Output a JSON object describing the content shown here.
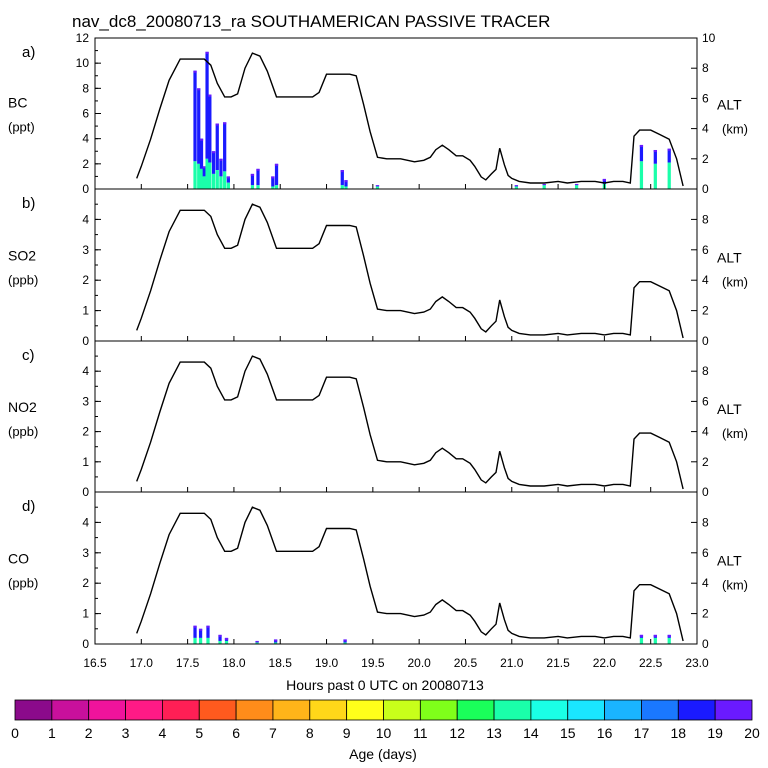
{
  "title": "nav_dc8_20080713_ra SOUTHAMERICAN PASSIVE TRACER",
  "xlabel": "Hours past 0 UTC on 20080713",
  "x_ticks": [
    "16.5",
    "17.0",
    "17.5",
    "18.0",
    "18.5",
    "19.0",
    "19.5",
    "20.0",
    "20.5",
    "21.0",
    "21.5",
    "22.0",
    "22.5",
    "23.0"
  ],
  "colorbar": {
    "label": "Age (days)",
    "ticks": [
      "0",
      "1",
      "2",
      "3",
      "4",
      "5",
      "6",
      "7",
      "8",
      "9",
      "10",
      "11",
      "12",
      "13",
      "14",
      "15",
      "16",
      "17",
      "18",
      "19",
      "20"
    ],
    "colors": [
      "#8b0a8b",
      "#c8109c",
      "#f0139c",
      "#ff1a86",
      "#ff1f55",
      "#ff5a1e",
      "#ff8c1a",
      "#ffb419",
      "#ffd719",
      "#ffff1a",
      "#c8ff1a",
      "#7fff1a",
      "#1aff5a",
      "#1affaa",
      "#1affe6",
      "#1ae6ff",
      "#1ab4ff",
      "#1a78ff",
      "#1a1aff",
      "#6a1aff"
    ]
  },
  "chart_data": [
    {
      "type": "area",
      "panel": "a)",
      "species": "BC",
      "units": "(ppt)",
      "right_label": "ALT",
      "right_units": "(km)",
      "y_ticks": [
        "0",
        "2",
        "4",
        "6",
        "8",
        "10",
        "12"
      ],
      "y2_ticks": [
        "0",
        "2",
        "4",
        "6",
        "8",
        "10"
      ],
      "ylim": [
        0,
        12
      ],
      "y2lim": [
        0,
        10
      ],
      "bars": [
        {
          "x": 17.58,
          "total": 9.4,
          "young": 2.2
        },
        {
          "x": 17.62,
          "total": 8.0,
          "young": 2.0
        },
        {
          "x": 17.65,
          "total": 4.0,
          "young": 1.6
        },
        {
          "x": 17.68,
          "total": 1.8,
          "young": 1.0
        },
        {
          "x": 17.71,
          "total": 10.9,
          "young": 2.4
        },
        {
          "x": 17.74,
          "total": 7.5,
          "young": 2.1
        },
        {
          "x": 17.78,
          "total": 3.0,
          "young": 1.2
        },
        {
          "x": 17.82,
          "total": 5.2,
          "young": 1.5
        },
        {
          "x": 17.86,
          "total": 2.4,
          "young": 1.0
        },
        {
          "x": 17.9,
          "total": 5.3,
          "young": 1.4
        },
        {
          "x": 17.94,
          "total": 1.0,
          "young": 0.5
        },
        {
          "x": 18.2,
          "total": 1.2,
          "young": 0.3
        },
        {
          "x": 18.26,
          "total": 1.6,
          "young": 0.3
        },
        {
          "x": 18.42,
          "total": 1.0,
          "young": 0.2
        },
        {
          "x": 18.46,
          "total": 2.0,
          "young": 0.3
        },
        {
          "x": 19.17,
          "total": 1.5,
          "young": 0.3
        },
        {
          "x": 19.21,
          "total": 0.7,
          "young": 0.2
        },
        {
          "x": 19.55,
          "total": 0.3,
          "young": 0.2
        },
        {
          "x": 21.05,
          "total": 0.3,
          "young": 0.2
        },
        {
          "x": 21.35,
          "total": 0.4,
          "young": 0.3
        },
        {
          "x": 21.7,
          "total": 0.4,
          "young": 0.3
        },
        {
          "x": 22.0,
          "total": 0.8,
          "young": 0.4
        },
        {
          "x": 22.4,
          "total": 3.5,
          "young": 2.2
        },
        {
          "x": 22.55,
          "total": 3.1,
          "young": 2.0
        },
        {
          "x": 22.7,
          "total": 3.2,
          "young": 2.1
        }
      ]
    },
    {
      "type": "line",
      "panel": "b)",
      "species": "SO2",
      "units": "(ppb)",
      "right_label": "ALT",
      "right_units": "(km)",
      "y_ticks": [
        "0",
        "1",
        "2",
        "3",
        "4"
      ],
      "y2_ticks": [
        "0",
        "2",
        "4",
        "6",
        "8"
      ],
      "ylim": [
        0,
        5
      ],
      "y2lim": [
        0,
        10
      ],
      "bars": []
    },
    {
      "type": "line",
      "panel": "c)",
      "species": "NO2",
      "units": "(ppb)",
      "right_label": "ALT",
      "right_units": "(km)",
      "y_ticks": [
        "0",
        "1",
        "2",
        "3",
        "4"
      ],
      "y2_ticks": [
        "0",
        "2",
        "4",
        "6",
        "8"
      ],
      "ylim": [
        0,
        5
      ],
      "y2lim": [
        0,
        10
      ],
      "bars": []
    },
    {
      "type": "area",
      "panel": "d)",
      "species": "CO",
      "units": "(ppb)",
      "right_label": "ALT",
      "right_units": "(km)",
      "y_ticks": [
        "0",
        "1",
        "2",
        "3",
        "4"
      ],
      "y2_ticks": [
        "0",
        "2",
        "4",
        "6",
        "8"
      ],
      "ylim": [
        0,
        5
      ],
      "y2lim": [
        0,
        10
      ],
      "bars": [
        {
          "x": 17.58,
          "total": 0.6,
          "young": 0.2
        },
        {
          "x": 17.64,
          "total": 0.5,
          "young": 0.2
        },
        {
          "x": 17.72,
          "total": 0.6,
          "young": 0.2
        },
        {
          "x": 17.85,
          "total": 0.3,
          "young": 0.1
        },
        {
          "x": 17.92,
          "total": 0.2,
          "young": 0.1
        },
        {
          "x": 18.25,
          "total": 0.1,
          "young": 0.05
        },
        {
          "x": 18.45,
          "total": 0.15,
          "young": 0.05
        },
        {
          "x": 19.2,
          "total": 0.15,
          "young": 0.05
        },
        {
          "x": 22.4,
          "total": 0.3,
          "young": 0.2
        },
        {
          "x": 22.55,
          "total": 0.3,
          "young": 0.2
        },
        {
          "x": 22.7,
          "total": 0.3,
          "young": 0.2
        }
      ]
    }
  ],
  "altitude_km": {
    "x": [
      16.95,
      17.0,
      17.1,
      17.2,
      17.3,
      17.42,
      17.5,
      17.62,
      17.68,
      17.75,
      17.82,
      17.9,
      17.97,
      18.04,
      18.12,
      18.2,
      18.28,
      18.36,
      18.46,
      18.55,
      18.75,
      18.85,
      18.92,
      19.0,
      19.15,
      19.25,
      19.32,
      19.4,
      19.47,
      19.55,
      19.65,
      19.8,
      19.95,
      20.05,
      20.12,
      20.18,
      20.25,
      20.32,
      20.4,
      20.47,
      20.55,
      20.6,
      20.67,
      20.72,
      20.78,
      20.83,
      20.87,
      20.92,
      20.96,
      21.0,
      21.08,
      21.2,
      21.35,
      21.5,
      21.6,
      21.75,
      21.9,
      22.0,
      22.1,
      22.2,
      22.28,
      22.32,
      22.38,
      22.5,
      22.6,
      22.7,
      22.78,
      22.85
    ],
    "y": [
      0.7,
      1.5,
      3.3,
      5.3,
      7.2,
      8.6,
      8.6,
      8.6,
      8.6,
      8.2,
      7.0,
      6.1,
      6.1,
      6.3,
      8.0,
      9.0,
      8.8,
      7.8,
      6.1,
      6.1,
      6.1,
      6.1,
      6.4,
      7.6,
      7.6,
      7.6,
      7.5,
      5.6,
      3.8,
      2.1,
      2.0,
      2.0,
      1.8,
      1.9,
      2.1,
      2.6,
      2.9,
      2.6,
      2.2,
      2.2,
      1.9,
      1.5,
      0.8,
      0.6,
      1.0,
      1.3,
      2.7,
      1.6,
      0.9,
      0.7,
      0.5,
      0.4,
      0.4,
      0.5,
      0.4,
      0.5,
      0.5,
      0.4,
      0.5,
      0.5,
      0.4,
      3.5,
      3.9,
      3.9,
      3.6,
      3.3,
      2.0,
      0.2
    ]
  }
}
